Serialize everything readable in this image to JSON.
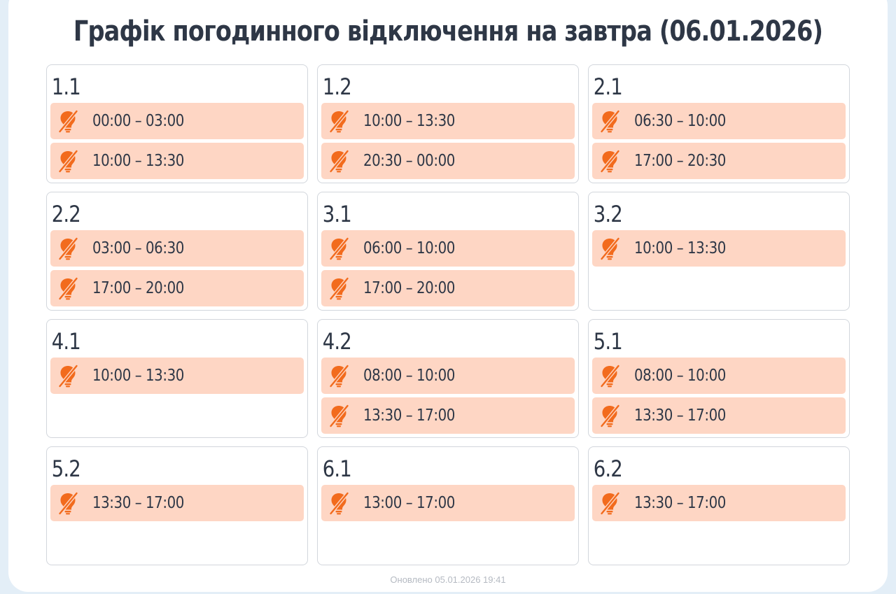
{
  "page": {
    "title": "Графік погодинного відключення на завтра (06.01.2026)",
    "updated": "Оновлено 05.01.2026 19:41"
  },
  "colors": {
    "page_background": "#e3eef7",
    "card_background": "#ffffff",
    "slot_background": "#fed6c4",
    "icon_orange": "#f26b1d",
    "text_dark": "#2e3746",
    "border": "#d2d6dc",
    "muted_text": "#b5bac2"
  },
  "icons": {
    "slot": "power-off-bulb-icon"
  },
  "groups": [
    {
      "name": "1.1",
      "slots": [
        {
          "time": "00:00 – 03:00"
        },
        {
          "time": "10:00 – 13:30"
        }
      ]
    },
    {
      "name": "1.2",
      "slots": [
        {
          "time": "10:00 – 13:30"
        },
        {
          "time": "20:30 – 00:00"
        }
      ]
    },
    {
      "name": "2.1",
      "slots": [
        {
          "time": "06:30 – 10:00"
        },
        {
          "time": "17:00 – 20:30"
        }
      ]
    },
    {
      "name": "2.2",
      "slots": [
        {
          "time": "03:00 – 06:30"
        },
        {
          "time": "17:00 – 20:00"
        }
      ]
    },
    {
      "name": "3.1",
      "slots": [
        {
          "time": "06:00 – 10:00"
        },
        {
          "time": "17:00 – 20:00"
        }
      ]
    },
    {
      "name": "3.2",
      "slots": [
        {
          "time": "10:00 – 13:30"
        }
      ]
    },
    {
      "name": "4.1",
      "slots": [
        {
          "time": "10:00 – 13:30"
        }
      ]
    },
    {
      "name": "4.2",
      "slots": [
        {
          "time": "08:00 – 10:00"
        },
        {
          "time": "13:30 – 17:00"
        }
      ]
    },
    {
      "name": "5.1",
      "slots": [
        {
          "time": "08:00 – 10:00"
        },
        {
          "time": "13:30 – 17:00"
        }
      ]
    },
    {
      "name": "5.2",
      "slots": [
        {
          "time": "13:30 – 17:00"
        }
      ]
    },
    {
      "name": "6.1",
      "slots": [
        {
          "time": "13:00 – 17:00"
        }
      ]
    },
    {
      "name": "6.2",
      "slots": [
        {
          "time": "13:30 – 17:00"
        }
      ]
    }
  ]
}
